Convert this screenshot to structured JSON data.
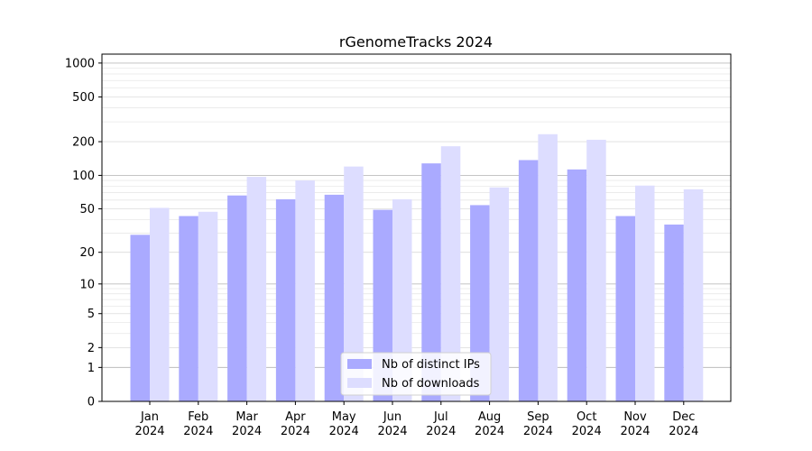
{
  "chart_data": {
    "type": "bar",
    "title": "rGenomeTracks 2024",
    "xlabel": "",
    "ylabel": "",
    "yscale": "log(1+y)",
    "ylim": [
      0,
      1200
    ],
    "yticks": [
      0,
      1,
      2,
      5,
      10,
      20,
      50,
      100,
      200,
      500,
      1000
    ],
    "ytick_labels": [
      "0",
      "1",
      "2",
      "5",
      "10",
      "20",
      "50",
      "100",
      "200",
      "500",
      "1000"
    ],
    "grid": true,
    "legend_position": "bottom-center",
    "categories": [
      [
        "Jan",
        "2024"
      ],
      [
        "Feb",
        "2024"
      ],
      [
        "Mar",
        "2024"
      ],
      [
        "Apr",
        "2024"
      ],
      [
        "May",
        "2024"
      ],
      [
        "Jun",
        "2024"
      ],
      [
        "Jul",
        "2024"
      ],
      [
        "Aug",
        "2024"
      ],
      [
        "Sep",
        "2024"
      ],
      [
        "Oct",
        "2024"
      ],
      [
        "Nov",
        "2024"
      ],
      [
        "Dec",
        "2024"
      ]
    ],
    "series": [
      {
        "name": "Nb of distinct IPs",
        "color": "#aaaaff",
        "values": [
          29,
          43,
          66,
          61,
          67,
          49,
          128,
          54,
          137,
          113,
          43,
          36
        ]
      },
      {
        "name": "Nb of downloads",
        "color": "#ddddff",
        "values": [
          51,
          47,
          97,
          90,
          120,
          61,
          182,
          78,
          233,
          208,
          81,
          75
        ]
      }
    ]
  }
}
